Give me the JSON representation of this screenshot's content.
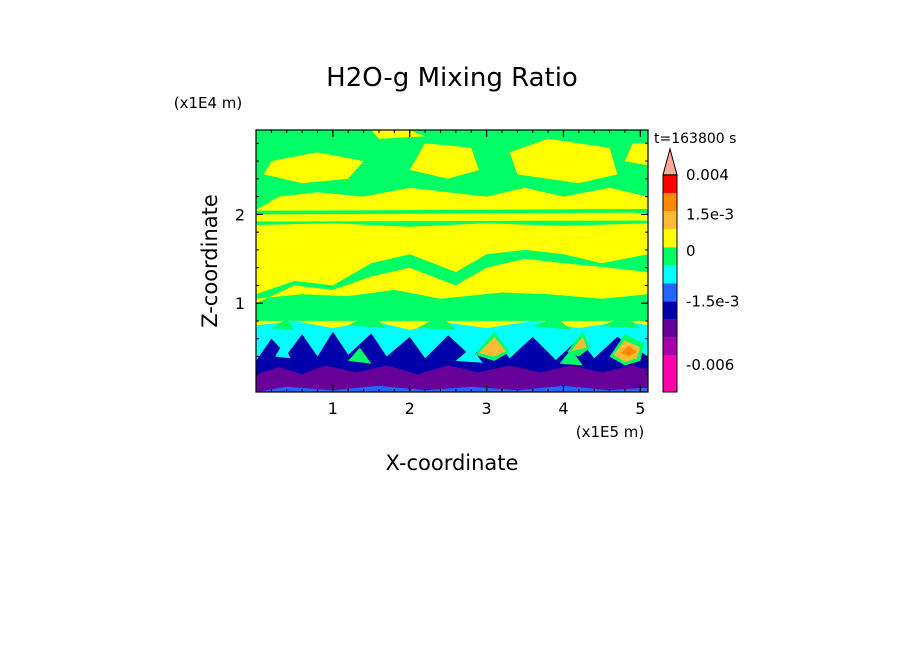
{
  "chart_data": {
    "type": "heatmap",
    "title": "H2O-g Mixing Ratio",
    "time_label": "t=163800 s",
    "xlabel": "X-coordinate",
    "ylabel": "Z-coordinate",
    "x_unit": "(x1E5 m)",
    "y_unit": "(x1E4 m)",
    "xlim": [
      0,
      5.1
    ],
    "ylim": [
      0,
      2.95
    ],
    "x_ticks": [
      1,
      2,
      3,
      4,
      5
    ],
    "y_ticks": [
      1,
      2
    ],
    "colorbar": {
      "levels": [
        {
          "color": "#ff00aa"
        },
        {
          "color": "#aa00aa"
        },
        {
          "color": "#660099"
        },
        {
          "color": "#0000aa"
        },
        {
          "color": "#2266ff"
        },
        {
          "color": "#00ffff"
        },
        {
          "color": "#00ff66"
        },
        {
          "color": "#ffff00"
        },
        {
          "color": "#ffbb33"
        },
        {
          "color": "#ff8800"
        },
        {
          "color": "#ff0000"
        },
        {
          "color": "#ffaa99"
        }
      ],
      "labels": [
        {
          "text": "-0.006",
          "level": 1
        },
        {
          "text": "-1.5e-3",
          "level": 4
        },
        {
          "text": "0",
          "level": 6.8
        },
        {
          "text": "1.5e-3",
          "level": 8.8
        },
        {
          "text": "0.004",
          "level": 11
        }
      ]
    },
    "field": {
      "background_color": "#ffff00",
      "regions": [
        {
          "color": "#00ff66",
          "points": [
            [
              0,
              2.05
            ],
            [
              0.3,
              2.2
            ],
            [
              0.8,
              2.25
            ],
            [
              1.4,
              2.2
            ],
            [
              2.0,
              2.3
            ],
            [
              2.5,
              2.25
            ],
            [
              3.0,
              2.2
            ],
            [
              3.5,
              2.3
            ],
            [
              4.0,
              2.2
            ],
            [
              4.6,
              2.3
            ],
            [
              5.1,
              2.2
            ],
            [
              5.1,
              2.95
            ],
            [
              0,
              2.95
            ]
          ]
        },
        {
          "color": "#ffff00",
          "points": [
            [
              0.1,
              2.45
            ],
            [
              0.6,
              2.35
            ],
            [
              1.2,
              2.4
            ],
            [
              1.4,
              2.6
            ],
            [
              0.8,
              2.7
            ],
            [
              0.2,
              2.6
            ]
          ]
        },
        {
          "color": "#ffff00",
          "points": [
            [
              2.0,
              2.5
            ],
            [
              2.5,
              2.4
            ],
            [
              2.9,
              2.5
            ],
            [
              2.8,
              2.75
            ],
            [
              2.2,
              2.8
            ]
          ]
        },
        {
          "color": "#ffff00",
          "points": [
            [
              3.4,
              2.45
            ],
            [
              4.2,
              2.35
            ],
            [
              4.7,
              2.45
            ],
            [
              4.6,
              2.75
            ],
            [
              3.8,
              2.85
            ],
            [
              3.3,
              2.7
            ]
          ]
        },
        {
          "color": "#ffff00",
          "points": [
            [
              1.6,
              2.85
            ],
            [
              2.2,
              2.88
            ],
            [
              2.0,
              2.95
            ],
            [
              1.5,
              2.95
            ]
          ]
        },
        {
          "color": "#ffff00",
          "points": [
            [
              4.8,
              2.6
            ],
            [
              5.1,
              2.55
            ],
            [
              5.1,
              2.8
            ],
            [
              4.9,
              2.8
            ]
          ]
        },
        {
          "color": "#00ff66",
          "points": [
            [
              0,
              2.0
            ],
            [
              5.1,
              2.02
            ],
            [
              5.1,
              2.06
            ],
            [
              0,
              2.04
            ]
          ]
        },
        {
          "color": "#00ff66",
          "points": [
            [
              0,
              1.88
            ],
            [
              1.0,
              1.9
            ],
            [
              2.0,
              1.86
            ],
            [
              3.0,
              1.9
            ],
            [
              4.0,
              1.87
            ],
            [
              5.1,
              1.9
            ],
            [
              5.1,
              1.93
            ],
            [
              0,
              1.92
            ]
          ]
        },
        {
          "color": "#00ff66",
          "points": [
            [
              0,
              1.1
            ],
            [
              0.5,
              1.25
            ],
            [
              1.0,
              1.2
            ],
            [
              1.5,
              1.45
            ],
            [
              2.0,
              1.55
            ],
            [
              2.6,
              1.35
            ],
            [
              3.0,
              1.55
            ],
            [
              3.5,
              1.6
            ],
            [
              4.0,
              1.55
            ],
            [
              4.5,
              1.45
            ],
            [
              5.1,
              1.55
            ],
            [
              5.1,
              0.8
            ],
            [
              0,
              0.8
            ]
          ]
        },
        {
          "color": "#ffff00",
          "points": [
            [
              0.8,
              1.5
            ],
            [
              1.3,
              1.55
            ],
            [
              1.6,
              1.75
            ],
            [
              1.2,
              1.85
            ],
            [
              0.7,
              1.75
            ]
          ]
        },
        {
          "color": "#ffff00",
          "points": [
            [
              2.7,
              1.55
            ],
            [
              3.3,
              1.6
            ],
            [
              3.6,
              1.8
            ],
            [
              3.0,
              1.85
            ],
            [
              2.6,
              1.7
            ]
          ]
        },
        {
          "color": "#ffff00",
          "points": [
            [
              4.2,
              1.6
            ],
            [
              4.9,
              1.65
            ],
            [
              5.0,
              1.8
            ],
            [
              4.4,
              1.85
            ]
          ]
        },
        {
          "color": "#ffff00",
          "points": [
            [
              0,
              1.05
            ],
            [
              0.6,
              1.1
            ],
            [
              1.2,
              1.08
            ],
            [
              1.8,
              1.15
            ],
            [
              2.4,
              1.05
            ],
            [
              3.2,
              1.12
            ],
            [
              3.8,
              1.1
            ],
            [
              4.5,
              1.05
            ],
            [
              5.1,
              1.1
            ],
            [
              5.1,
              1.35
            ],
            [
              4.6,
              1.4
            ],
            [
              4.0,
              1.45
            ],
            [
              3.5,
              1.5
            ],
            [
              3.0,
              1.4
            ],
            [
              2.6,
              1.2
            ],
            [
              2.0,
              1.4
            ],
            [
              1.5,
              1.3
            ],
            [
              1.0,
              1.15
            ],
            [
              0.5,
              1.2
            ],
            [
              0,
              1.0
            ]
          ]
        },
        {
          "color": "#00ffff",
          "points": [
            [
              0,
              0.75
            ],
            [
              0.5,
              0.8
            ],
            [
              1.0,
              0.72
            ],
            [
              1.5,
              0.8
            ],
            [
              2.0,
              0.7
            ],
            [
              2.5,
              0.78
            ],
            [
              3.0,
              0.72
            ],
            [
              3.6,
              0.8
            ],
            [
              4.2,
              0.72
            ],
            [
              4.8,
              0.8
            ],
            [
              5.1,
              0.75
            ],
            [
              5.1,
              0.3
            ],
            [
              0,
              0.3
            ]
          ]
        },
        {
          "color": "#00ff66",
          "points": [
            [
              0.2,
              0.72
            ],
            [
              0.4,
              0.82
            ],
            [
              0.5,
              0.7
            ]
          ]
        },
        {
          "color": "#00ff66",
          "points": [
            [
              1.2,
              0.75
            ],
            [
              1.5,
              0.88
            ],
            [
              1.7,
              0.72
            ]
          ]
        },
        {
          "color": "#00ff66",
          "points": [
            [
              2.1,
              0.72
            ],
            [
              2.4,
              0.86
            ],
            [
              2.6,
              0.7
            ]
          ]
        },
        {
          "color": "#00ff66",
          "points": [
            [
              3.6,
              0.74
            ],
            [
              3.9,
              0.84
            ],
            [
              4.1,
              0.7
            ]
          ]
        },
        {
          "color": "#00ff66",
          "points": [
            [
              4.5,
              0.74
            ],
            [
              4.8,
              0.86
            ],
            [
              5.0,
              0.72
            ]
          ]
        },
        {
          "color": "#0000aa",
          "points": [
            [
              0,
              0.35
            ],
            [
              0.2,
              0.6
            ],
            [
              0.4,
              0.42
            ],
            [
              0.6,
              0.65
            ],
            [
              0.8,
              0.4
            ],
            [
              1.0,
              0.68
            ],
            [
              1.2,
              0.42
            ],
            [
              1.5,
              0.66
            ],
            [
              1.7,
              0.4
            ],
            [
              2.0,
              0.62
            ],
            [
              2.2,
              0.38
            ],
            [
              2.5,
              0.64
            ],
            [
              2.8,
              0.4
            ],
            [
              3.1,
              0.6
            ],
            [
              3.3,
              0.38
            ],
            [
              3.6,
              0.62
            ],
            [
              3.9,
              0.36
            ],
            [
              4.2,
              0.6
            ],
            [
              4.4,
              0.38
            ],
            [
              4.7,
              0.62
            ],
            [
              5.1,
              0.4
            ],
            [
              5.1,
              0.1
            ],
            [
              0,
              0.1
            ]
          ]
        },
        {
          "color": "#00ffff",
          "points": [
            [
              0.25,
              0.4
            ],
            [
              0.35,
              0.55
            ],
            [
              0.45,
              0.38
            ]
          ]
        },
        {
          "color": "#00ff66",
          "points": [
            [
              1.2,
              0.35
            ],
            [
              1.35,
              0.5
            ],
            [
              1.5,
              0.32
            ]
          ]
        },
        {
          "color": "#00ffff",
          "points": [
            [
              2.6,
              0.35
            ],
            [
              2.8,
              0.5
            ],
            [
              2.95,
              0.33
            ]
          ]
        },
        {
          "color": "#00ff66",
          "points": [
            [
              3.95,
              0.32
            ],
            [
              4.1,
              0.48
            ],
            [
              4.25,
              0.3
            ]
          ]
        },
        {
          "color": "#00ff66",
          "points": [
            [
              2.85,
              0.42
            ],
            [
              3.1,
              0.68
            ],
            [
              3.3,
              0.45
            ],
            [
              3.1,
              0.35
            ]
          ]
        },
        {
          "color": "#ffbb33",
          "points": [
            [
              2.9,
              0.44
            ],
            [
              3.1,
              0.62
            ],
            [
              3.25,
              0.46
            ],
            [
              3.1,
              0.4
            ]
          ]
        },
        {
          "color": "#00ff66",
          "points": [
            [
              4.05,
              0.45
            ],
            [
              4.25,
              0.68
            ],
            [
              4.35,
              0.5
            ],
            [
              4.2,
              0.4
            ]
          ]
        },
        {
          "color": "#ffbb33",
          "points": [
            [
              4.1,
              0.46
            ],
            [
              4.25,
              0.62
            ],
            [
              4.3,
              0.5
            ]
          ]
        },
        {
          "color": "#00ff66",
          "points": [
            [
              4.6,
              0.4
            ],
            [
              4.8,
              0.65
            ],
            [
              5.05,
              0.55
            ],
            [
              5.0,
              0.35
            ],
            [
              4.8,
              0.3
            ]
          ]
        },
        {
          "color": "#ffbb33",
          "points": [
            [
              4.65,
              0.42
            ],
            [
              4.8,
              0.58
            ],
            [
              5.0,
              0.5
            ],
            [
              4.95,
              0.38
            ],
            [
              4.8,
              0.34
            ]
          ]
        },
        {
          "color": "#ff8800",
          "points": [
            [
              4.75,
              0.44
            ],
            [
              4.85,
              0.52
            ],
            [
              4.95,
              0.45
            ],
            [
              4.85,
              0.4
            ]
          ]
        },
        {
          "color": "#660099",
          "points": [
            [
              0,
              0.05
            ],
            [
              0,
              0.2
            ],
            [
              0.3,
              0.28
            ],
            [
              0.6,
              0.2
            ],
            [
              0.9,
              0.3
            ],
            [
              1.3,
              0.22
            ],
            [
              1.7,
              0.3
            ],
            [
              2.1,
              0.2
            ],
            [
              2.5,
              0.3
            ],
            [
              2.9,
              0.22
            ],
            [
              3.3,
              0.3
            ],
            [
              3.7,
              0.22
            ],
            [
              4.1,
              0.3
            ],
            [
              4.5,
              0.22
            ],
            [
              4.9,
              0.3
            ],
            [
              5.1,
              0.25
            ],
            [
              5.1,
              0
            ],
            [
              0,
              0
            ]
          ]
        },
        {
          "color": "#2266ff",
          "points": [
            [
              0,
              0
            ],
            [
              0.4,
              0.06
            ],
            [
              1.0,
              0.02
            ],
            [
              1.6,
              0.07
            ],
            [
              2.2,
              0.02
            ],
            [
              2.8,
              0.06
            ],
            [
              3.4,
              0.02
            ],
            [
              4.0,
              0.07
            ],
            [
              4.6,
              0.02
            ],
            [
              5.1,
              0.05
            ],
            [
              5.1,
              0
            ],
            [
              0,
              0
            ]
          ]
        }
      ]
    }
  }
}
